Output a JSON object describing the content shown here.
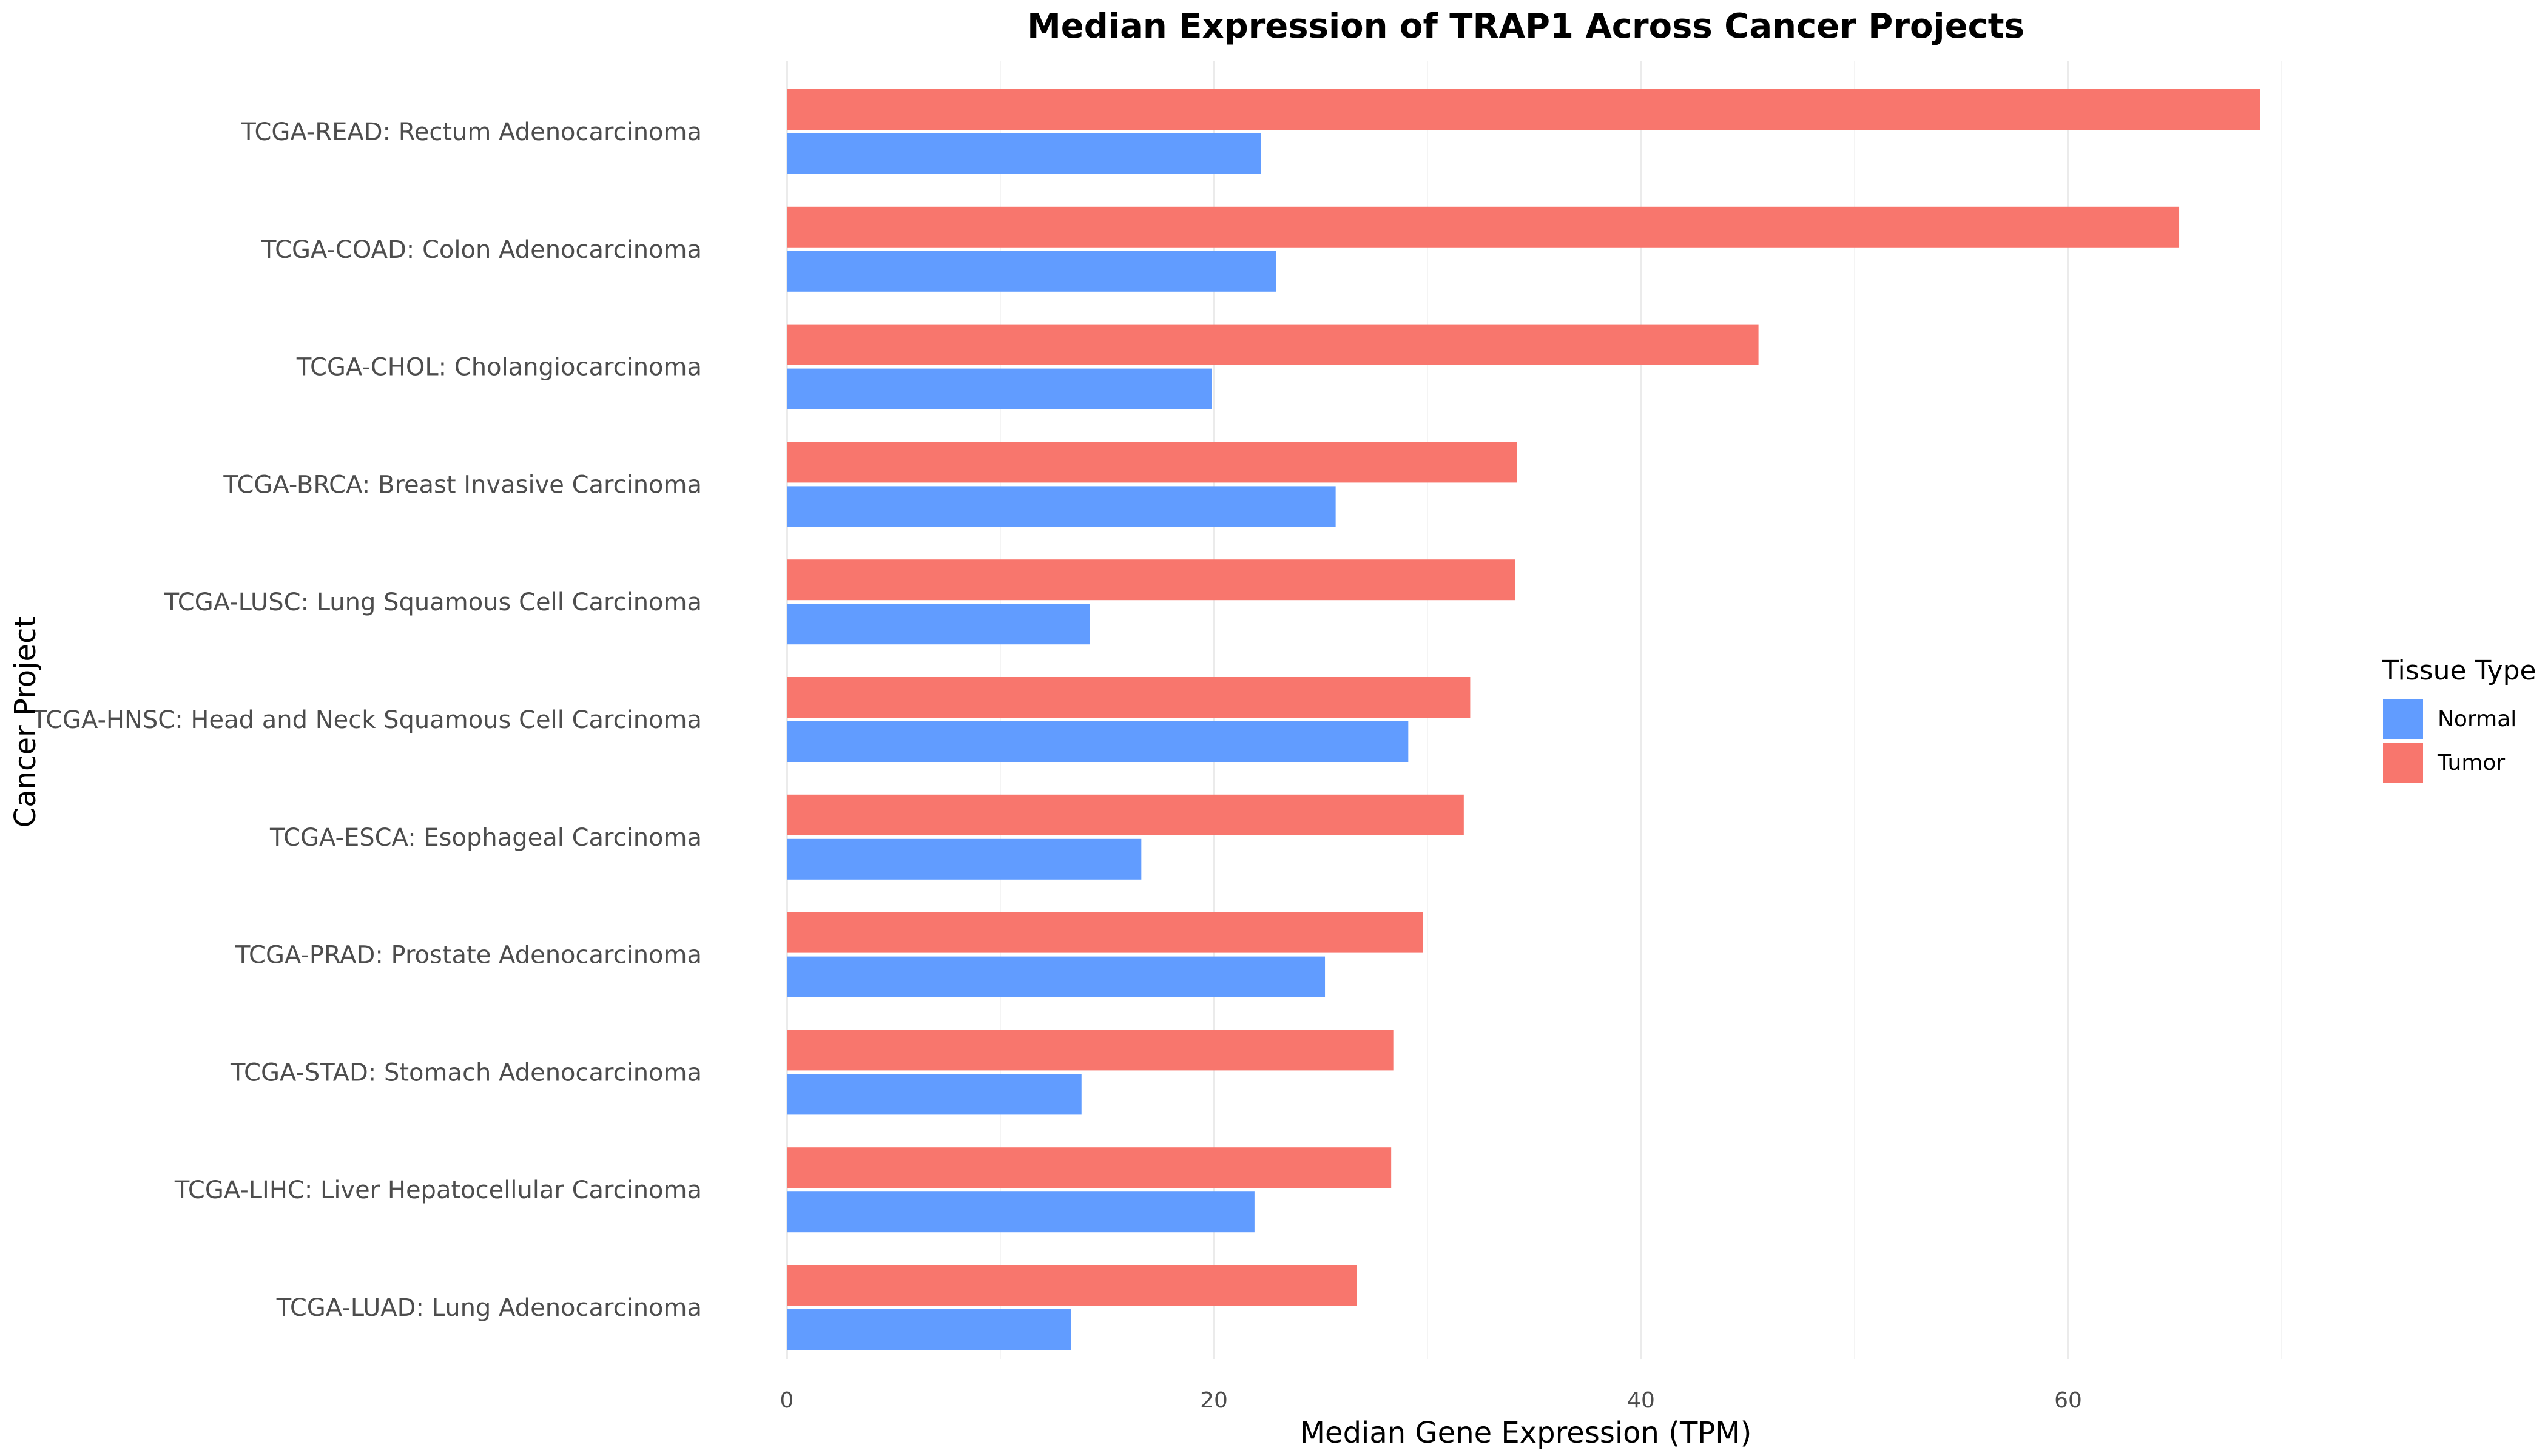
{
  "chart_data": {
    "type": "bar",
    "orientation": "horizontal",
    "title": "Median Expression of TRAP1 Across Cancer Projects",
    "xlabel": "Median Gene Expression (TPM)",
    "ylabel": "Cancer Project",
    "xlim": [
      0,
      72
    ],
    "xticks": [
      0,
      20,
      40,
      60
    ],
    "grid": true,
    "legend": {
      "title": "Tissue Type",
      "placement": "right"
    },
    "categories": [
      "TCGA-READ: Rectum Adenocarcinoma",
      "TCGA-COAD: Colon Adenocarcinoma",
      "TCGA-CHOL: Cholangiocarcinoma",
      "TCGA-BRCA: Breast Invasive Carcinoma",
      "TCGA-LUSC: Lung Squamous Cell Carcinoma",
      "TCGA-HNSC: Head and Neck Squamous Cell Carcinoma",
      "TCGA-ESCA: Esophageal Carcinoma",
      "TCGA-PRAD: Prostate Adenocarcinoma",
      "TCGA-STAD: Stomach Adenocarcinoma",
      "TCGA-LIHC: Liver Hepatocellular Carcinoma",
      "TCGA-LUAD: Lung Adenocarcinoma"
    ],
    "series": [
      {
        "name": "Tumor",
        "color": "#F8766D",
        "values": [
          69.0,
          65.2,
          45.5,
          34.2,
          34.1,
          32.0,
          31.7,
          29.8,
          28.4,
          28.3,
          26.7
        ]
      },
      {
        "name": "Normal",
        "color": "#619CFF",
        "values": [
          22.2,
          22.9,
          19.9,
          25.7,
          14.2,
          29.1,
          16.6,
          25.2,
          13.8,
          21.9,
          13.3
        ]
      }
    ],
    "legend_order": [
      "Normal",
      "Tumor"
    ]
  }
}
